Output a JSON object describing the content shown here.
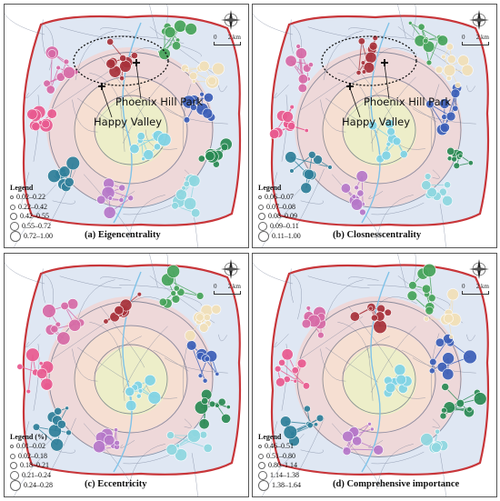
{
  "panels": [
    {
      "caption": "(a) Eigencentrality",
      "legend_title": "Legend",
      "legend": [
        "0.02–0.22",
        "0.22–0.42",
        "0.42–0.55",
        "0.55–0.72",
        "0.72–1.00"
      ],
      "places": [
        "Phoenix Hill Park",
        "Happy Valley"
      ],
      "scale_labels": [
        "0",
        "2 km"
      ]
    },
    {
      "caption": "(b) Closnesscentrality",
      "legend_title": "Legend",
      "legend": [
        "0.06–0.07",
        "0.07–0.08",
        "0.08–0.09",
        "0.09–0.11",
        "0.11–1.00"
      ],
      "places": [
        "Phoenix Hill Park",
        "Happy Valley"
      ],
      "scale_labels": [
        "0",
        "2 km"
      ]
    },
    {
      "caption": "(c) Eccentricity",
      "legend_title": "Legend (%)",
      "legend": [
        "0.01–0.02",
        "0.02–0.18",
        "0.18–0.21",
        "0.21–0.24",
        "0.24–0.28"
      ],
      "places": [],
      "scale_labels": [
        "0",
        "2 km"
      ]
    },
    {
      "caption": "(d) Comprehensive importance",
      "legend_title": "Legend",
      "legend": [
        "0.46–0.51",
        "0.51–0.80",
        "0.80–1.14",
        "1.14–1.38",
        "1.38–1.64"
      ],
      "places": [],
      "scale_labels": [
        "0",
        "2 km"
      ]
    }
  ],
  "colors": {
    "boundary": "#c8363a",
    "ring_outer": "#f3d3d0",
    "ring_middle": "#f7e1cf",
    "ring_inner": "#ecefc8",
    "base": "#dfe7f3",
    "road": "#6b7690",
    "water": "#7fc2e8"
  }
}
